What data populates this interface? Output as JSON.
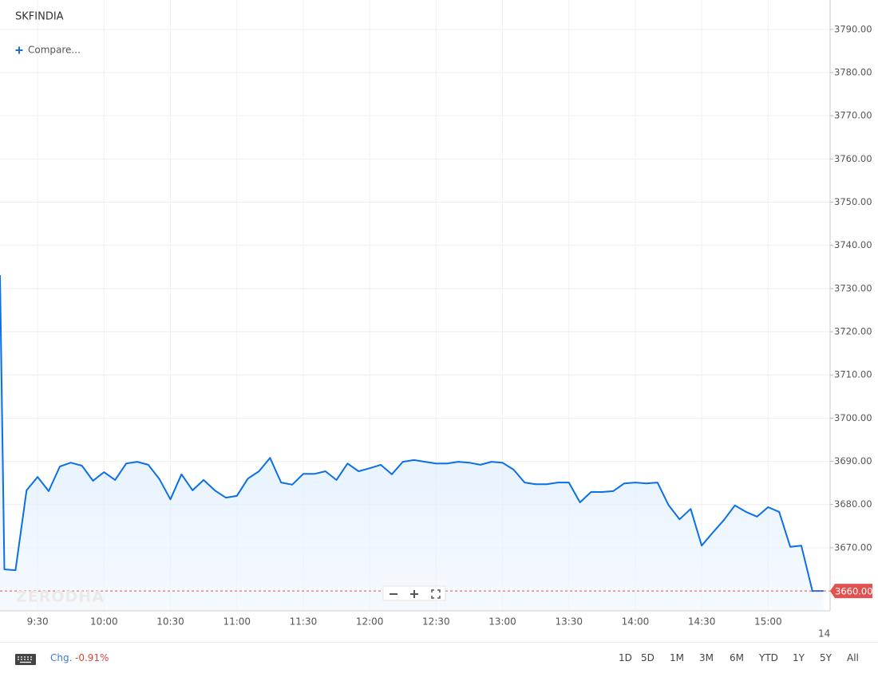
{
  "header": {
    "symbol": "SKFINDIA",
    "compare": "Compare..."
  },
  "chart_data": {
    "type": "line",
    "x": [
      "9:13",
      "9:15",
      "9:20",
      "9:25",
      "9:30",
      "9:35",
      "9:40",
      "9:45",
      "9:50",
      "9:55",
      "10:00",
      "10:05",
      "10:10",
      "10:15",
      "10:20",
      "10:25",
      "10:30",
      "10:35",
      "10:40",
      "10:45",
      "10:50",
      "10:55",
      "11:00",
      "11:05",
      "11:10",
      "11:15",
      "11:20",
      "11:25",
      "11:30",
      "11:35",
      "11:40",
      "11:45",
      "11:50",
      "11:55",
      "12:00",
      "12:05",
      "12:10",
      "12:15",
      "12:20",
      "12:25",
      "12:30",
      "12:35",
      "12:40",
      "12:45",
      "12:50",
      "12:55",
      "13:00",
      "13:05",
      "13:10",
      "13:15",
      "13:20",
      "13:25",
      "13:30",
      "13:35",
      "13:40",
      "13:45",
      "13:50",
      "13:55",
      "14:00",
      "14:05",
      "14:10",
      "14:15",
      "14:20",
      "14:25",
      "14:30",
      "14:35",
      "14:40",
      "14:45",
      "14:50",
      "14:55",
      "15:00",
      "15:05",
      "15:10",
      "15:15",
      "15:20",
      "15:25"
    ],
    "series": [
      {
        "color": "#0b6fe6",
        "values": [
          3733.1,
          3665,
          3664.8,
          3683.3,
          3686.4,
          3683.1,
          3688.8,
          3689.7,
          3689,
          3685.5,
          3687.5,
          3685.7,
          3689.5,
          3689.9,
          3689.2,
          3685.9,
          3681.2,
          3687,
          3683.3,
          3685.7,
          3683.3,
          3681.6,
          3682,
          3686,
          3687.7,
          3690.8,
          3685.1,
          3684.6,
          3687.1,
          3687.1,
          3687.7,
          3685.7,
          3689.5,
          3687.7,
          3688.4,
          3689.2,
          3687,
          3689.9,
          3690.3,
          3689.9,
          3689.5,
          3689.5,
          3689.9,
          3689.7,
          3689.2,
          3689.9,
          3689.7,
          3688.1,
          3685.1,
          3684.7,
          3684.7,
          3685.1,
          3685.1,
          3680.5,
          3682.9,
          3682.9,
          3683.1,
          3684.9,
          3685.1,
          3684.9,
          3685.1,
          3679.9,
          3676.6,
          3679,
          3670.5,
          3673.5,
          3676.4,
          3679.8,
          3678.3,
          3677.2,
          3679.4,
          3678.3,
          3670.2,
          3670.5,
          3660,
          3660
        ]
      }
    ],
    "xlim": [
      "9:13",
      "15:28"
    ],
    "xticks": [
      "9:30",
      "10:00",
      "10:30",
      "11:00",
      "11:30",
      "12:00",
      "12:30",
      "13:00",
      "13:30",
      "14:00",
      "14:30",
      "15:00"
    ],
    "x_edge_label": "14",
    "ylim": [
      3655.4,
      3796.8
    ],
    "yticks": [
      {
        "value": 3670,
        "label": "3670.00"
      },
      {
        "value": 3680,
        "label": "3680.00"
      },
      {
        "value": 3690,
        "label": "3690.00"
      },
      {
        "value": 3700,
        "label": "3700.00"
      },
      {
        "value": 3710,
        "label": "3710.00"
      },
      {
        "value": 3720,
        "label": "3720.00"
      },
      {
        "value": 3730,
        "label": "3730.00"
      },
      {
        "value": 3740,
        "label": "3740.00"
      },
      {
        "value": 3750,
        "label": "3750.00"
      },
      {
        "value": 3760,
        "label": "3760.00"
      },
      {
        "value": 3770,
        "label": "3770.00"
      },
      {
        "value": 3780,
        "label": "3780.00"
      },
      {
        "value": 3790,
        "label": "3790.00"
      }
    ],
    "current_price": {
      "value": 3660,
      "label": "3660.00"
    },
    "grid": true,
    "watermark": "ZERODHA"
  },
  "footer": {
    "change_label": "Chg.",
    "change_value": "-0.91%",
    "ranges": [
      "1D",
      "5D",
      "1M",
      "3M",
      "6M",
      "YTD",
      "1Y",
      "5Y",
      "All"
    ]
  }
}
